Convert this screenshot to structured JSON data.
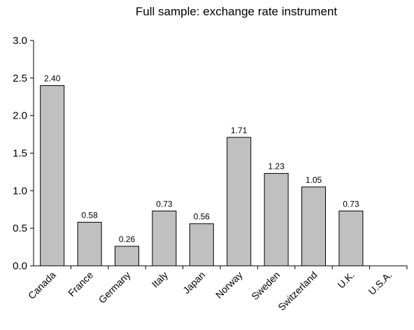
{
  "chart_data": {
    "type": "bar",
    "title": "Full sample: exchange rate instrument",
    "xlabel": "",
    "ylabel": "",
    "ylim": [
      0,
      3.0
    ],
    "yticks": [
      "0.0",
      "0.5",
      "1.0",
      "1.5",
      "2.0",
      "2.5",
      "3.0"
    ],
    "grid": false,
    "categories": [
      "Canada",
      "France",
      "Germany",
      "Italy",
      "Japan",
      "Norway",
      "Sweden",
      "Switzerland",
      "U.K.",
      "U.S.A."
    ],
    "values": [
      2.4,
      0.58,
      0.26,
      0.73,
      0.56,
      1.71,
      1.23,
      1.05,
      0.73,
      null
    ],
    "data_labels": [
      "2.40",
      "0.58",
      "0.26",
      "0.73",
      "0.56",
      "1.71",
      "1.23",
      "1.05",
      "0.73",
      ""
    ],
    "bar_color": "#c0c0c0",
    "bar_stroke": "#000000"
  }
}
